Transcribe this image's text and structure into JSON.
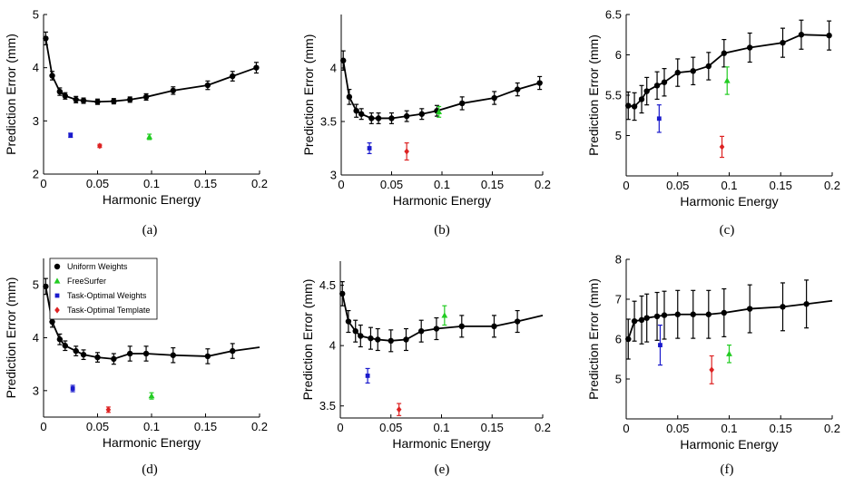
{
  "legend": {
    "entries": [
      {
        "label": "Uniform Weights",
        "color": "#000000",
        "marker": "circle"
      },
      {
        "label": "FreeSurfer",
        "color": "#22cc22",
        "marker": "triangle"
      },
      {
        "label": "Task-Optimal Weights",
        "color": "#1a1acc",
        "marker": "square"
      },
      {
        "label": "Task-Optimal Template",
        "color": "#dd2222",
        "marker": "diamond"
      }
    ]
  },
  "colors": {
    "uniform": "#000000",
    "freesurfer": "#22cc22",
    "task_weights": "#1a1acc",
    "task_template": "#dd2222"
  },
  "chart_data": [
    {
      "panel": "(a)",
      "type": "line",
      "xlabel": "Harmonic Energy",
      "ylabel": "Prediction Error (mm)",
      "xlim": [
        0,
        0.2
      ],
      "ylim": [
        2,
        5
      ],
      "xticks": [
        0,
        0.05,
        0.1,
        0.15,
        0.2
      ],
      "xtick_labels": [
        "0",
        "0.05",
        "0.1",
        "0.15",
        "0.2"
      ],
      "yticks": [
        2,
        3,
        4,
        5
      ],
      "ytick_labels": [
        "2",
        "3",
        "4",
        "5"
      ],
      "uniform": {
        "x": [
          0.002,
          0.008,
          0.015,
          0.02,
          0.03,
          0.037,
          0.05,
          0.065,
          0.08,
          0.095,
          0.12,
          0.152,
          0.175,
          0.197
        ],
        "y": [
          4.55,
          3.85,
          3.55,
          3.47,
          3.4,
          3.38,
          3.36,
          3.37,
          3.4,
          3.45,
          3.57,
          3.67,
          3.84,
          4.0
        ],
        "err": [
          0.12,
          0.08,
          0.07,
          0.06,
          0.06,
          0.05,
          0.05,
          0.05,
          0.05,
          0.06,
          0.07,
          0.08,
          0.09,
          0.1
        ]
      },
      "freesurfer": {
        "x": 0.098,
        "y": 2.7,
        "err": 0.05
      },
      "task_weights": {
        "x": 0.025,
        "y": 2.73,
        "err": 0.04
      },
      "task_template": {
        "x": 0.052,
        "y": 2.53,
        "err": 0.03
      }
    },
    {
      "panel": "(b)",
      "type": "line",
      "xlabel": "Harmonic Energy",
      "ylabel": "Prediction Error (mm)",
      "xlim": [
        0,
        0.2
      ],
      "ylim": [
        3,
        4.5
      ],
      "xticks": [
        0,
        0.05,
        0.1,
        0.15,
        0.2
      ],
      "xtick_labels": [
        "0",
        "0.05",
        "0.1",
        "0.15",
        "0.2"
      ],
      "yticks": [
        3,
        3.5,
        4
      ],
      "ytick_labels": [
        "3",
        "3.5",
        "4"
      ],
      "uniform": {
        "x": [
          0.002,
          0.008,
          0.015,
          0.02,
          0.03,
          0.037,
          0.05,
          0.065,
          0.08,
          0.095,
          0.12,
          0.152,
          0.175,
          0.197
        ],
        "y": [
          4.07,
          3.73,
          3.6,
          3.57,
          3.53,
          3.53,
          3.53,
          3.55,
          3.57,
          3.6,
          3.67,
          3.72,
          3.8,
          3.86
        ],
        "err": [
          0.09,
          0.07,
          0.06,
          0.05,
          0.05,
          0.05,
          0.05,
          0.05,
          0.05,
          0.05,
          0.06,
          0.06,
          0.06,
          0.06
        ]
      },
      "freesurfer": {
        "x": 0.097,
        "y": 3.59,
        "err": 0.05
      },
      "task_weights": {
        "x": 0.028,
        "y": 3.25,
        "err": 0.05
      },
      "task_template": {
        "x": 0.065,
        "y": 3.22,
        "err": 0.08
      }
    },
    {
      "panel": "(c)",
      "type": "line",
      "xlabel": "Harmonic Energy",
      "ylabel": "Prediction Error (mm)",
      "xlim": [
        0,
        0.2
      ],
      "ylim": [
        4.5,
        6.5
      ],
      "xticks": [
        0,
        0.05,
        0.1,
        0.15,
        0.2
      ],
      "xtick_labels": [
        "0",
        "0.05",
        "0.1",
        "0.15",
        "0.2"
      ],
      "yticks": [
        5,
        5.5,
        6,
        6.5
      ],
      "ytick_labels": [
        "5",
        "5.5",
        "6",
        "6.5"
      ],
      "uniform": {
        "x": [
          0.002,
          0.008,
          0.015,
          0.02,
          0.03,
          0.037,
          0.05,
          0.065,
          0.08,
          0.095,
          0.12,
          0.152,
          0.17,
          0.197
        ],
        "y": [
          5.37,
          5.36,
          5.45,
          5.55,
          5.62,
          5.66,
          5.78,
          5.8,
          5.86,
          6.02,
          6.09,
          6.15,
          6.25,
          6.24
        ],
        "err": [
          0.17,
          0.17,
          0.17,
          0.17,
          0.17,
          0.17,
          0.17,
          0.17,
          0.17,
          0.17,
          0.18,
          0.18,
          0.18,
          0.18
        ]
      },
      "freesurfer": {
        "x": 0.098,
        "y": 5.68,
        "err": 0.17
      },
      "task_weights": {
        "x": 0.032,
        "y": 5.21,
        "err": 0.17
      },
      "task_template": {
        "x": 0.093,
        "y": 4.86,
        "err": 0.13
      }
    },
    {
      "panel": "(d)",
      "type": "line",
      "xlabel": "Harmonic Energy",
      "ylabel": "Prediction Error (mm)",
      "xlim": [
        0,
        0.2
      ],
      "ylim": [
        2.5,
        5.5
      ],
      "xticks": [
        0,
        0.05,
        0.1,
        0.15,
        0.2
      ],
      "xtick_labels": [
        "0",
        "0.05",
        "0.1",
        "0.15",
        "0.2"
      ],
      "yticks": [
        3,
        4,
        5
      ],
      "ytick_labels": [
        "3",
        "4",
        "5"
      ],
      "uniform": {
        "x": [
          0.002,
          0.008,
          0.015,
          0.02,
          0.03,
          0.037,
          0.05,
          0.065,
          0.08,
          0.095,
          0.12,
          0.152,
          0.175,
          0.2
        ],
        "y": [
          4.97,
          4.3,
          3.97,
          3.85,
          3.75,
          3.68,
          3.63,
          3.6,
          3.7,
          3.7,
          3.67,
          3.65,
          3.75,
          3.82
        ],
        "err": [
          0.15,
          0.1,
          0.1,
          0.09,
          0.09,
          0.09,
          0.09,
          0.1,
          0.14,
          0.14,
          0.14,
          0.14,
          0.14,
          0.0
        ]
      },
      "freesurfer": {
        "x": 0.1,
        "y": 2.9,
        "err": 0.06
      },
      "task_weights": {
        "x": 0.027,
        "y": 3.04,
        "err": 0.06
      },
      "task_template": {
        "x": 0.06,
        "y": 2.64,
        "err": 0.05
      }
    },
    {
      "panel": "(e)",
      "type": "line",
      "xlabel": "Harmonic Energy",
      "ylabel": "Prediction Error (mm)",
      "xlim": [
        0,
        0.2
      ],
      "ylim": [
        3.4,
        4.7
      ],
      "xticks": [
        0,
        0.05,
        0.1,
        0.15,
        0.2
      ],
      "xtick_labels": [
        "0",
        "0.05",
        "0.1",
        "0.15",
        "0.2"
      ],
      "yticks": [
        3.5,
        4,
        4.5
      ],
      "ytick_labels": [
        "3.5",
        "4",
        "4.5"
      ],
      "uniform": {
        "x": [
          0.002,
          0.008,
          0.015,
          0.02,
          0.03,
          0.037,
          0.05,
          0.065,
          0.08,
          0.095,
          0.12,
          0.152,
          0.175,
          0.2
        ],
        "y": [
          4.43,
          4.2,
          4.12,
          4.08,
          4.06,
          4.05,
          4.04,
          4.05,
          4.12,
          4.14,
          4.16,
          4.16,
          4.2,
          4.25
        ],
        "err": [
          0.1,
          0.09,
          0.09,
          0.09,
          0.09,
          0.09,
          0.09,
          0.09,
          0.09,
          0.09,
          0.09,
          0.09,
          0.09,
          0.0
        ]
      },
      "freesurfer": {
        "x": 0.103,
        "y": 4.25,
        "err": 0.08
      },
      "task_weights": {
        "x": 0.027,
        "y": 3.75,
        "err": 0.06
      },
      "task_template": {
        "x": 0.058,
        "y": 3.47,
        "err": 0.05
      }
    },
    {
      "panel": "(f)",
      "type": "line",
      "xlabel": "Harmonic Energy",
      "ylabel": "Prediction Error (mm)",
      "xlim": [
        0,
        0.2
      ],
      "ylim": [
        4,
        8
      ],
      "xticks": [
        0,
        0.05,
        0.1,
        0.15,
        0.2
      ],
      "xtick_labels": [
        "0",
        "0.05",
        "0.1",
        "0.15",
        "0.2"
      ],
      "yticks": [
        5,
        6,
        7,
        8
      ],
      "ytick_labels": [
        "5",
        "6",
        "7",
        "8"
      ],
      "uniform": {
        "x": [
          0.002,
          0.008,
          0.015,
          0.02,
          0.03,
          0.037,
          0.05,
          0.065,
          0.08,
          0.095,
          0.12,
          0.152,
          0.175,
          0.2
        ],
        "y": [
          6.0,
          6.45,
          6.48,
          6.53,
          6.57,
          6.6,
          6.62,
          6.62,
          6.62,
          6.66,
          6.76,
          6.81,
          6.88,
          6.96
        ],
        "err": [
          0.5,
          0.5,
          0.6,
          0.6,
          0.6,
          0.6,
          0.6,
          0.6,
          0.6,
          0.6,
          0.6,
          0.6,
          0.6,
          0.0
        ]
      },
      "freesurfer": {
        "x": 0.1,
        "y": 5.63,
        "err": 0.22
      },
      "task_weights": {
        "x": 0.033,
        "y": 5.85,
        "err": 0.5
      },
      "task_template": {
        "x": 0.083,
        "y": 5.23,
        "err": 0.35
      }
    }
  ]
}
